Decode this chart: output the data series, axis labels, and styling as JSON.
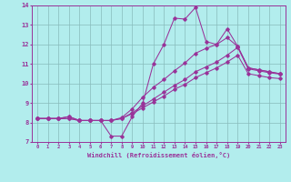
{
  "xlabel": "Windchill (Refroidissement éolien,°C)",
  "bg_color": "#b2eded",
  "line_color": "#993399",
  "grid_color": "#88bbbb",
  "xlim": [
    -0.5,
    23.5
  ],
  "ylim": [
    7,
    14
  ],
  "yticks": [
    7,
    8,
    9,
    10,
    11,
    12,
    13,
    14
  ],
  "xticks": [
    0,
    1,
    2,
    3,
    4,
    5,
    6,
    7,
    8,
    9,
    10,
    11,
    12,
    13,
    14,
    15,
    16,
    17,
    18,
    19,
    20,
    21,
    22,
    23
  ],
  "series": [
    [
      8.2,
      8.2,
      8.2,
      8.3,
      8.1,
      8.1,
      8.1,
      7.3,
      7.3,
      8.3,
      9.0,
      11.0,
      12.0,
      13.35,
      13.3,
      13.9,
      12.15,
      12.0,
      12.8,
      11.9,
      10.8,
      10.7,
      10.6,
      10.5
    ],
    [
      8.2,
      8.2,
      8.2,
      8.3,
      8.1,
      8.1,
      8.1,
      8.1,
      8.25,
      8.7,
      9.3,
      9.8,
      10.2,
      10.65,
      11.05,
      11.55,
      11.8,
      12.0,
      12.35,
      11.9,
      10.8,
      10.7,
      10.6,
      10.5
    ],
    [
      8.2,
      8.2,
      8.2,
      8.2,
      8.1,
      8.1,
      8.1,
      8.1,
      8.2,
      8.5,
      8.85,
      9.2,
      9.55,
      9.9,
      10.2,
      10.6,
      10.85,
      11.1,
      11.45,
      11.85,
      10.75,
      10.65,
      10.55,
      10.48
    ],
    [
      8.2,
      8.2,
      8.2,
      8.2,
      8.1,
      8.1,
      8.1,
      8.1,
      8.2,
      8.45,
      8.75,
      9.05,
      9.35,
      9.7,
      9.95,
      10.3,
      10.55,
      10.8,
      11.1,
      11.45,
      10.5,
      10.4,
      10.3,
      10.25
    ]
  ]
}
